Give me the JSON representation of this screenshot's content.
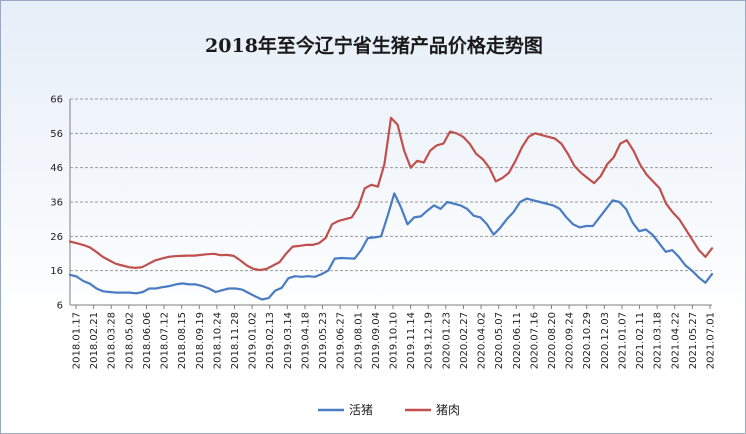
{
  "chart_data": {
    "type": "line",
    "title": "2018年至今辽宁省生猪产品价格走势图",
    "ylim": [
      6,
      66
    ],
    "yticks": [
      6,
      16,
      26,
      36,
      46,
      56,
      66
    ],
    "grid": "horizontal-dashed",
    "legend_position": "bottom",
    "x_tick_labels": [
      "2018.01.17",
      "2018.02.21",
      "2018.03.28",
      "2018.05.02",
      "2018.06.06",
      "2018.07.12",
      "2018.08.15",
      "2018.09.19",
      "2018.10.24",
      "2018.11.28",
      "2019.01.02",
      "2019.02.13",
      "2019.03.14",
      "2019.04.18",
      "2019.05.23",
      "2019.06.27",
      "2019.08.01",
      "2019.09.04",
      "2019.10.10",
      "2019.11.14",
      "2019.12.19",
      "2020.01.23",
      "2020.02.27",
      "2020.04.02",
      "2020.05.07",
      "2020.06.11",
      "2020.07.16",
      "2020.08.20",
      "2020.09.24",
      "2020.10.29",
      "2020.12.03",
      "2021.01.07",
      "2021.02.11",
      "2021.03.18",
      "2021.04.22",
      "2021.05.27",
      "2021.07.01"
    ],
    "series": [
      {
        "name": "活猪",
        "color": "#4a7cc4",
        "values": [
          14.8,
          14.3,
          13.0,
          12.2,
          10.8,
          10.0,
          9.8,
          9.6,
          9.6,
          9.6,
          9.4,
          9.8,
          10.8,
          10.8,
          11.2,
          11.5,
          12.0,
          12.3,
          12.0,
          12.0,
          11.5,
          10.8,
          9.8,
          10.3,
          10.8,
          10.8,
          10.5,
          9.5,
          8.5,
          7.6,
          8.0,
          10.2,
          11.0,
          13.8,
          14.4,
          14.2,
          14.4,
          14.2,
          15.0,
          16.0,
          19.5,
          19.7,
          19.6,
          19.5,
          22.0,
          25.5,
          25.7,
          26.0,
          32.0,
          38.5,
          34.5,
          29.5,
          31.5,
          31.8,
          33.5,
          35.0,
          34.0,
          36.0,
          35.5,
          35.0,
          34.0,
          32.0,
          31.5,
          29.5,
          26.5,
          28.5,
          31.0,
          33.0,
          36.0,
          37.0,
          36.5,
          36.0,
          35.5,
          35.0,
          34.0,
          31.5,
          29.5,
          28.6,
          29.0,
          29.0,
          31.5,
          34.0,
          36.5,
          36.0,
          34.0,
          30.0,
          27.5,
          28.0,
          26.5,
          24.0,
          21.5,
          22.0,
          20.0,
          17.5,
          16.0,
          14.0,
          12.5,
          15.0
        ]
      },
      {
        "name": "猪肉",
        "color": "#c0504d",
        "values": [
          24.5,
          24.0,
          23.5,
          22.8,
          21.5,
          20.0,
          19.0,
          18.0,
          17.5,
          17.0,
          16.8,
          17.0,
          18.0,
          19.0,
          19.5,
          20.0,
          20.2,
          20.3,
          20.4,
          20.4,
          20.6,
          20.8,
          20.9,
          20.5,
          20.6,
          20.3,
          19.0,
          17.5,
          16.5,
          16.2,
          16.5,
          17.5,
          18.5,
          21.0,
          23.0,
          23.2,
          23.5,
          23.5,
          24.0,
          25.5,
          29.5,
          30.5,
          31.0,
          31.5,
          34.5,
          40.0,
          41.0,
          40.5,
          47.0,
          60.5,
          58.5,
          51.0,
          46.0,
          48.0,
          47.5,
          51.0,
          52.5,
          53.0,
          56.5,
          56.0,
          55.0,
          53.0,
          50.0,
          48.5,
          46.0,
          42.0,
          43.0,
          44.5,
          48.0,
          52.0,
          55.0,
          56.0,
          55.5,
          55.0,
          54.5,
          53.0,
          50.0,
          46.5,
          44.5,
          43.0,
          41.5,
          43.5,
          47.0,
          49.0,
          53.0,
          54.0,
          51.0,
          47.0,
          44.0,
          42.0,
          40.0,
          35.5,
          33.0,
          31.0,
          28.0,
          25.0,
          22.0,
          20.0,
          22.5
        ]
      }
    ]
  }
}
